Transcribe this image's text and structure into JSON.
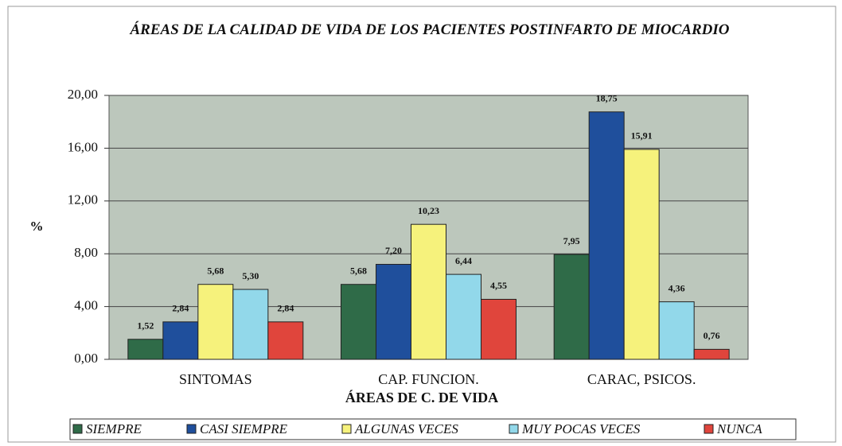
{
  "chart_data": {
    "type": "bar",
    "title": "ÁREAS DE LA CALIDAD DE VIDA DE LOS PACIENTES POSTINFARTO DE MIOCARDIO",
    "xlabel": "ÁREAS DE C. DE VIDA",
    "ylabel": "%",
    "categories": [
      "SINTOMAS",
      "CAP. FUNCION.",
      "CARAC, PSICOS."
    ],
    "series": [
      {
        "name": "SIEMPRE",
        "color": "#2f6b48",
        "values": [
          1.52,
          5.68,
          7.95
        ],
        "value_labels": [
          "1,52",
          "5,68",
          "7,95"
        ]
      },
      {
        "name": "CASI SIEMPRE",
        "color": "#1f4f9c",
        "values": [
          2.84,
          7.2,
          18.75
        ],
        "value_labels": [
          "2,84",
          "7,20",
          "18,75"
        ]
      },
      {
        "name": "ALGUNAS VECES",
        "color": "#f6f27c",
        "values": [
          5.68,
          10.23,
          15.91
        ],
        "value_labels": [
          "5,68",
          "10,23",
          "15,91"
        ]
      },
      {
        "name": "MUY POCAS VECES",
        "color": "#92d8ea",
        "values": [
          5.3,
          6.44,
          4.36
        ],
        "value_labels": [
          "5,30",
          "6,44",
          "4,36"
        ]
      },
      {
        "name": "NUNCA",
        "color": "#e0453c",
        "values": [
          2.84,
          4.55,
          0.76
        ],
        "value_labels": [
          "2,84",
          "4,55",
          "0,76"
        ]
      }
    ],
    "ylim": [
      0,
      20
    ],
    "yticks": [
      {
        "value": 0,
        "label": "0,00"
      },
      {
        "value": 4,
        "label": "4,00"
      },
      {
        "value": 8,
        "label": "8,00"
      },
      {
        "value": 12,
        "label": "12,00"
      },
      {
        "value": 16,
        "label": "16,00"
      },
      {
        "value": 20,
        "label": "20,00"
      }
    ],
    "grid": true,
    "legend": "bottom"
  }
}
